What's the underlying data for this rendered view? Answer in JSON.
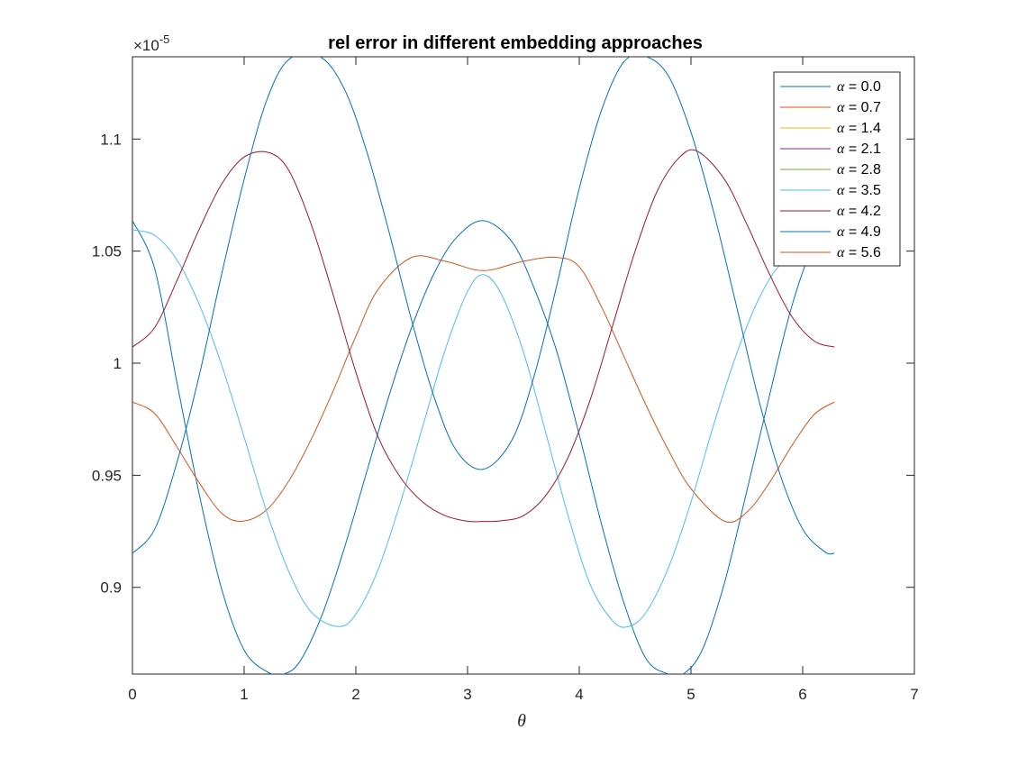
{
  "chart_data": {
    "type": "line",
    "title": "rel error in different embedding approaches",
    "xlabel": "θ",
    "ylabel": "",
    "xlim": [
      0,
      7
    ],
    "ylim": [
      0.8613,
      1.1367
    ],
    "xticks": [
      "0",
      "1",
      "2",
      "3",
      "4",
      "5",
      "6",
      "7"
    ],
    "yticks": [
      "0.9",
      "0.95",
      "1",
      "1.05",
      "1.1"
    ],
    "ytick_values": [
      0.9,
      0.95,
      1.0,
      1.05,
      1.1
    ],
    "y_exponent_base": "×10",
    "y_exponent_power": "-5",
    "legend_symbol": "α",
    "legend_position": "top-right",
    "box": true,
    "grid": false,
    "series": [
      {
        "name": "= 0.0",
        "color": "#0072BD",
        "x": [
          0,
          0.2,
          0.4,
          0.6,
          0.8,
          1.0,
          1.2,
          1.35,
          1.5,
          1.7,
          1.9,
          2.1,
          2.3,
          2.5,
          2.7,
          2.9,
          3.14159,
          3.4,
          3.6,
          3.8,
          4.0,
          4.2,
          4.4,
          4.6,
          4.8,
          4.93,
          5.1,
          5.3,
          5.5,
          5.7,
          5.9,
          6.1,
          6.28319
        ],
        "y": [
          1.0636,
          1.042,
          0.991,
          0.941,
          0.899,
          0.872,
          0.8625,
          0.8613,
          0.867,
          0.888,
          0.918,
          0.952,
          0.986,
          1.016,
          1.04,
          1.056,
          1.0636,
          1.054,
          1.033,
          1.005,
          0.968,
          0.928,
          0.893,
          0.868,
          0.8613,
          0.8613,
          0.872,
          0.902,
          0.943,
          0.985,
          1.025,
          1.053,
          1.0636
        ]
      },
      {
        "name": "= 0.7",
        "color": "#D95319",
        "x": [
          0,
          0.2,
          0.4,
          0.6,
          0.8,
          0.985,
          1.2,
          1.4,
          1.6,
          1.8,
          2.0,
          2.2,
          2.5,
          2.8,
          3.14159,
          3.5,
          3.8,
          4.0,
          4.2,
          4.4,
          4.6,
          4.8,
          5.0,
          5.3,
          5.5,
          5.7,
          5.9,
          6.1,
          6.28319
        ],
        "y": [
          0.9827,
          0.9775,
          0.9625,
          0.9465,
          0.933,
          0.9295,
          0.9345,
          0.9475,
          0.966,
          0.988,
          1.012,
          1.033,
          1.0472,
          1.0455,
          1.0413,
          1.0455,
          1.0472,
          1.043,
          1.025,
          1.003,
          0.981,
          0.961,
          0.944,
          0.9295,
          0.9335,
          0.9465,
          0.963,
          0.977,
          0.9827
        ]
      },
      {
        "name": "= 1.4",
        "color": "#EDB120",
        "x": [],
        "y": []
      },
      {
        "name": "= 2.1",
        "color": "#7E2F8E",
        "x": [],
        "y": []
      },
      {
        "name": "= 2.8",
        "color": "#77AC30",
        "x": [],
        "y": []
      },
      {
        "name": "= 3.5",
        "color": "#4DBEEE",
        "x": [
          0,
          0.2,
          0.4,
          0.6,
          0.8,
          1.0,
          1.2,
          1.4,
          1.6,
          1.84,
          2.0,
          2.2,
          2.4,
          2.6,
          2.8,
          3.0,
          3.14159,
          3.3,
          3.5,
          3.7,
          3.9,
          4.1,
          4.3,
          4.44,
          4.6,
          4.8,
          5.0,
          5.2,
          5.4,
          5.6,
          5.8,
          6.0,
          6.1,
          6.28319
        ],
        "y": [
          1.0595,
          1.057,
          1.046,
          1.026,
          0.999,
          0.967,
          0.934,
          0.907,
          0.889,
          0.8825,
          0.888,
          0.908,
          0.938,
          0.972,
          1.006,
          1.032,
          1.0395,
          1.031,
          1.005,
          0.969,
          0.932,
          0.901,
          0.885,
          0.8825,
          0.889,
          0.909,
          0.938,
          0.972,
          1.003,
          1.028,
          1.044,
          1.0475,
          1.052,
          1.0595
        ]
      },
      {
        "name": "= 4.2",
        "color": "#A2142F",
        "x": [
          0,
          0.2,
          0.4,
          0.6,
          0.8,
          1.0,
          1.22,
          1.4,
          1.6,
          1.8,
          2.0,
          2.2,
          2.4,
          2.6,
          2.8,
          3.0,
          3.14159,
          3.3,
          3.5,
          3.7,
          3.9,
          4.1,
          4.3,
          4.5,
          4.7,
          4.9,
          5.06,
          5.3,
          5.5,
          5.7,
          5.9,
          6.1,
          6.28319
        ],
        "y": [
          1.0072,
          1.016,
          1.037,
          1.06,
          1.08,
          1.092,
          1.094,
          1.086,
          1.062,
          1.03,
          0.996,
          0.967,
          0.949,
          0.938,
          0.932,
          0.9295,
          0.9294,
          0.9297,
          0.932,
          0.941,
          0.958,
          0.984,
          1.017,
          1.05,
          1.077,
          1.092,
          1.0945,
          1.082,
          1.062,
          1.04,
          1.021,
          1.01,
          1.0072
        ]
      },
      {
        "name": "= 4.9",
        "color": "#0072BD",
        "x": [
          0,
          0.2,
          0.4,
          0.6,
          0.8,
          1.0,
          1.2,
          1.4,
          1.68,
          1.9,
          2.1,
          2.3,
          2.5,
          2.7,
          2.9,
          3.14159,
          3.4,
          3.6,
          3.8,
          4.0,
          4.2,
          4.4,
          4.6,
          4.8,
          5.0,
          5.2,
          5.4,
          5.6,
          5.8,
          6.0,
          6.2,
          6.28319
        ],
        "y": [
          0.9152,
          0.926,
          0.956,
          0.995,
          1.04,
          1.082,
          1.117,
          1.1355,
          1.1367,
          1.122,
          1.094,
          1.058,
          1.019,
          0.985,
          0.961,
          0.9527,
          0.966,
          0.995,
          1.035,
          1.078,
          1.113,
          1.1345,
          1.1367,
          1.128,
          1.103,
          1.068,
          1.027,
          0.985,
          0.95,
          0.926,
          0.9158,
          0.9152
        ]
      },
      {
        "name": "= 5.6",
        "color": "#D95319",
        "x": [],
        "y": []
      }
    ]
  }
}
